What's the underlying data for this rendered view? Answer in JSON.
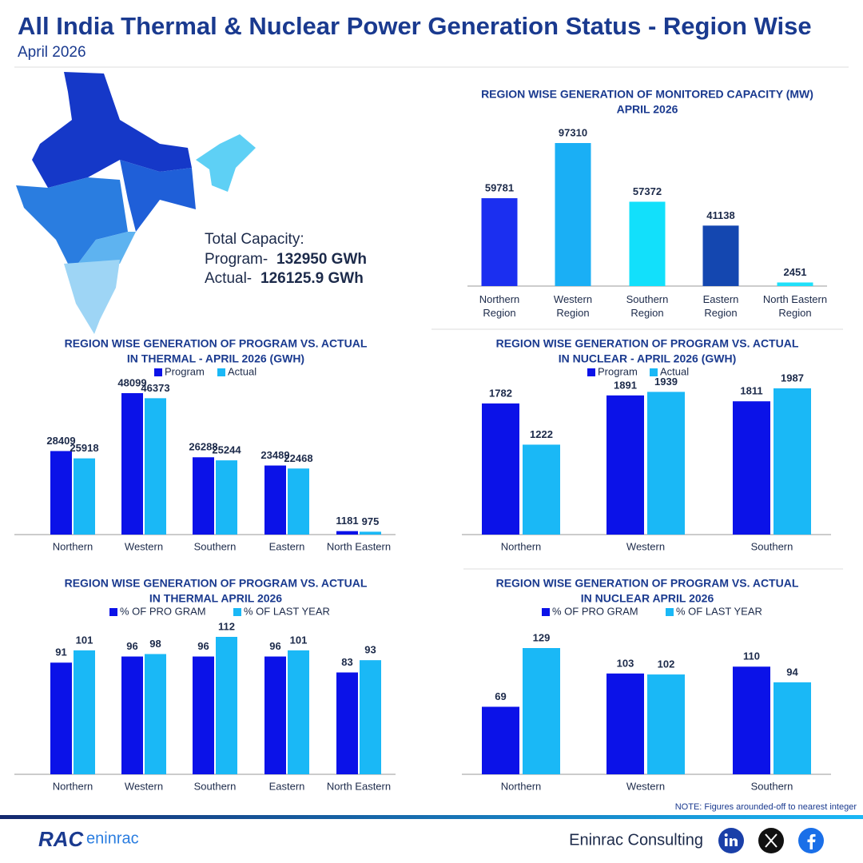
{
  "header": {
    "title": "All India Thermal & Nuclear Power Generation Status - Region Wise",
    "subtitle": "April 2026"
  },
  "capacity": {
    "label": "Total Capacity:",
    "program_label": "Program-",
    "program": "132950 GWh",
    "actual_label": "Actual-",
    "actual": "126125.9 GWh"
  },
  "chart_data": [
    {
      "type": "bar",
      "title": [
        "REGION WISE GENERATION OF MONITORED CAPACITY (MW)",
        "APRIL 2026"
      ],
      "categories": [
        "Northern Region",
        "Western Region",
        "Southern Region",
        "Eastern Region",
        "North Eastern Region"
      ],
      "values": [
        59781,
        97310,
        57372,
        41138,
        2451
      ],
      "colors": [
        "#1b2ff0",
        "#1aaff5",
        "#12e0fb",
        "#1447b0",
        "#1fe0fa"
      ]
    },
    {
      "type": "grouped_bar",
      "title": [
        "REGION WISE GENERATION OF PROGRAM VS. ACTUAL",
        "IN THERMAL  - APRIL 2026 (GWH)"
      ],
      "categories": [
        "Northern",
        "Western",
        "Southern",
        "Eastern",
        "North Eastern"
      ],
      "series": [
        {
          "name": "Program",
          "color": "#0b12e8",
          "values": [
            28409,
            48099,
            26288,
            23489,
            1181
          ]
        },
        {
          "name": "Actual",
          "color": "#1ab8f6",
          "values": [
            25918,
            46373,
            25244,
            22468,
            975
          ]
        }
      ]
    },
    {
      "type": "grouped_bar",
      "title": [
        "REGION WISE GENERATION OF PROGRAM VS. ACTUAL",
        "IN NUCLEAR - APRIL 2026 (GWH)"
      ],
      "categories": [
        "Northern",
        "Western",
        "Southern"
      ],
      "series": [
        {
          "name": "Program",
          "color": "#0b12e8",
          "values": [
            1782,
            1891,
            1811
          ]
        },
        {
          "name": "Actual",
          "color": "#1ab8f6",
          "values": [
            1222,
            1939,
            1987
          ]
        }
      ]
    },
    {
      "type": "grouped_bar",
      "title": [
        "REGION WISE GENERATION OF PROGRAM VS. ACTUAL",
        "IN THERMAL APRIL 2026"
      ],
      "categories": [
        "Northern",
        "Western",
        "Southern",
        "Eastern",
        "North Eastern"
      ],
      "series": [
        {
          "name": "% OF PRO GRAM",
          "color": "#0b12e8",
          "values": [
            91,
            96,
            96,
            96,
            83
          ]
        },
        {
          "name": "% OF LAST YEAR",
          "color": "#1ab8f6",
          "values": [
            101,
            98,
            112,
            101,
            93
          ]
        }
      ]
    },
    {
      "type": "grouped_bar",
      "title": [
        "REGION WISE GENERATION OF PROGRAM VS. ACTUAL",
        "IN NUCLEAR APRIL 2026"
      ],
      "categories": [
        "Northern",
        "Western",
        "Southern"
      ],
      "series": [
        {
          "name": "% OF PRO GRAM",
          "color": "#0b12e8",
          "values": [
            69,
            103,
            110
          ]
        },
        {
          "name": "% OF LAST YEAR",
          "color": "#1ab8f6",
          "values": [
            129,
            102,
            94
          ]
        }
      ]
    }
  ],
  "note": "NOTE: Figures arounded-off to nearest integer",
  "footer": {
    "logo": [
      "RAC",
      "eninrac"
    ],
    "company": "Eninrac Consulting"
  }
}
